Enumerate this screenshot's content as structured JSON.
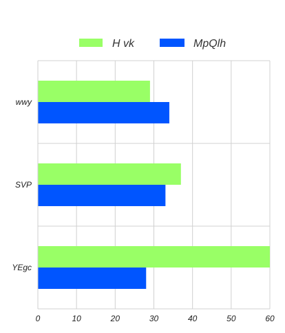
{
  "chart_data": {
    "type": "bar",
    "orientation": "horizontal",
    "categories": [
      "wwy",
      "SVP",
      "YEgc"
    ],
    "series": [
      {
        "name": "H vk",
        "values": [
          29,
          37,
          60
        ]
      },
      {
        "name": "MpQlh",
        "values": [
          34,
          33,
          28
        ]
      }
    ],
    "xlim": [
      0,
      60
    ],
    "xticks": [
      "0",
      "10",
      "20",
      "30",
      "40",
      "50",
      "60"
    ],
    "grid": true,
    "legend_position": "top-center",
    "colors": [
      "#99ff66",
      "#0055ff"
    ]
  }
}
